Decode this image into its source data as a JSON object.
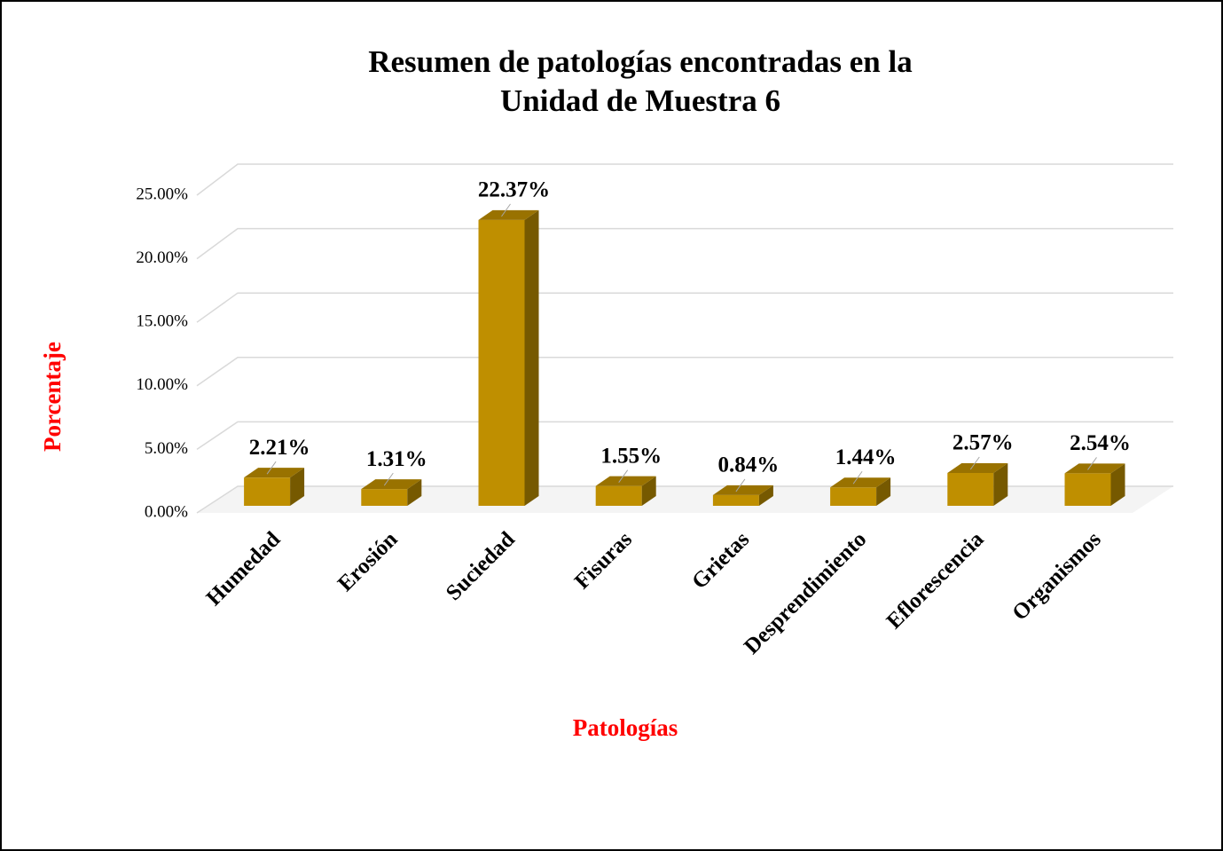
{
  "chart_data": {
    "type": "bar3d",
    "title": [
      "Resumen de patologías encontradas en la",
      "Unidad de Muestra 6"
    ],
    "xlabel": "Patologías",
    "ylabel": "Porcentaje",
    "categories": [
      "Humedad",
      "Erosión",
      "Suciedad",
      "Fisuras",
      "Grietas",
      "Desprendimiento",
      "Eflorescencia",
      "Organismos"
    ],
    "values": [
      2.21,
      1.31,
      22.37,
      1.55,
      0.84,
      1.44,
      2.57,
      2.54
    ],
    "value_labels": [
      "2.21%",
      "1.31%",
      "22.37%",
      "1.55%",
      "0.84%",
      "1.44%",
      "2.57%",
      "2.54%"
    ],
    "color": "#bf8f00",
    "ylim": [
      0,
      25
    ],
    "yticks": [
      {
        "value": 0,
        "label": "0.00%"
      },
      {
        "value": 5,
        "label": "5.00%"
      },
      {
        "value": 10,
        "label": "10.00%"
      },
      {
        "value": 15,
        "label": "15.00%"
      },
      {
        "value": 20,
        "label": "20.00%"
      },
      {
        "value": 25,
        "label": "25.00%"
      }
    ],
    "grid": true
  }
}
